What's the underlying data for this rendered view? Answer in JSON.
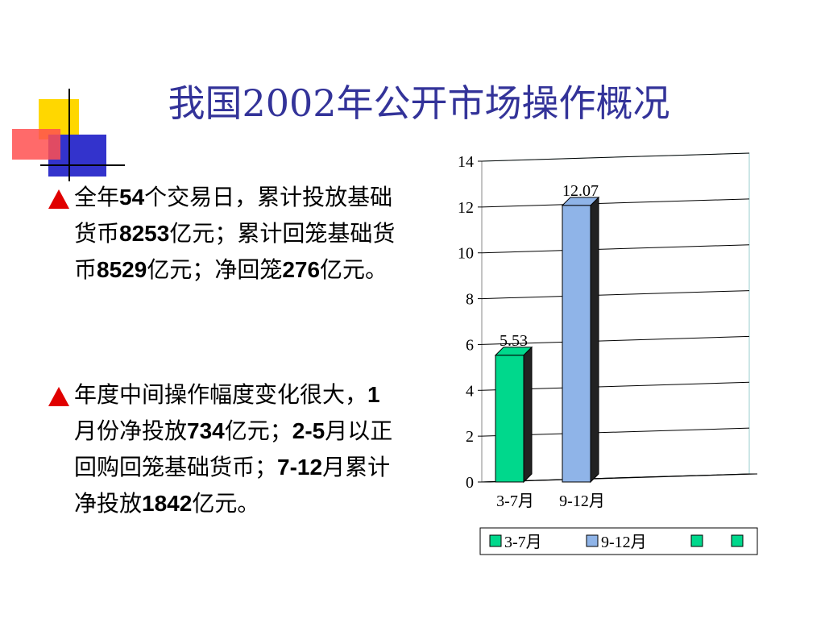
{
  "title": "我国2002年公开市场操作概况",
  "bullets": [
    [
      {
        "text": "全年"
      },
      {
        "text": "54",
        "bold": true
      },
      {
        "text": "个交易日，累计投放基础货币"
      },
      {
        "text": "8253",
        "bold": true
      },
      {
        "text": "亿元；累计回笼基础货币"
      },
      {
        "text": "8529",
        "bold": true
      },
      {
        "text": "亿元；净回笼"
      },
      {
        "text": "276",
        "bold": true
      },
      {
        "text": "亿元。"
      }
    ],
    [
      {
        "text": "年度中间操作幅度变化很大，"
      },
      {
        "text": "1",
        "bold": true
      },
      {
        "text": "月份净投放"
      },
      {
        "text": "734",
        "bold": true
      },
      {
        "text": "亿元；"
      },
      {
        "text": "2-5",
        "bold": true
      },
      {
        "text": "月以正回购回笼基础货币；"
      },
      {
        "text": "7-12",
        "bold": true
      },
      {
        "text": "月累计净投放"
      },
      {
        "text": "1842",
        "bold": true
      },
      {
        "text": "亿元。"
      }
    ]
  ],
  "chart_data": {
    "type": "bar",
    "categories": [
      "3-7月",
      "9-12月",
      null,
      null
    ],
    "series": [
      {
        "name": "3-7月",
        "color": "#00d88c",
        "values": [
          5.53,
          null,
          null,
          null
        ]
      },
      {
        "name": "9-12月",
        "color": "#8fb4e8",
        "values": [
          null,
          12.07,
          null,
          null
        ]
      },
      {
        "name": null,
        "color": "#00d88c",
        "values": [
          null,
          null,
          null,
          null
        ]
      },
      {
        "name": null,
        "color": "#00d88c",
        "values": [
          null,
          null,
          null,
          null
        ]
      }
    ],
    "ylim": [
      0,
      14
    ],
    "yticks": [
      0,
      2,
      4,
      6,
      8,
      10,
      12,
      14
    ],
    "grid": true
  }
}
